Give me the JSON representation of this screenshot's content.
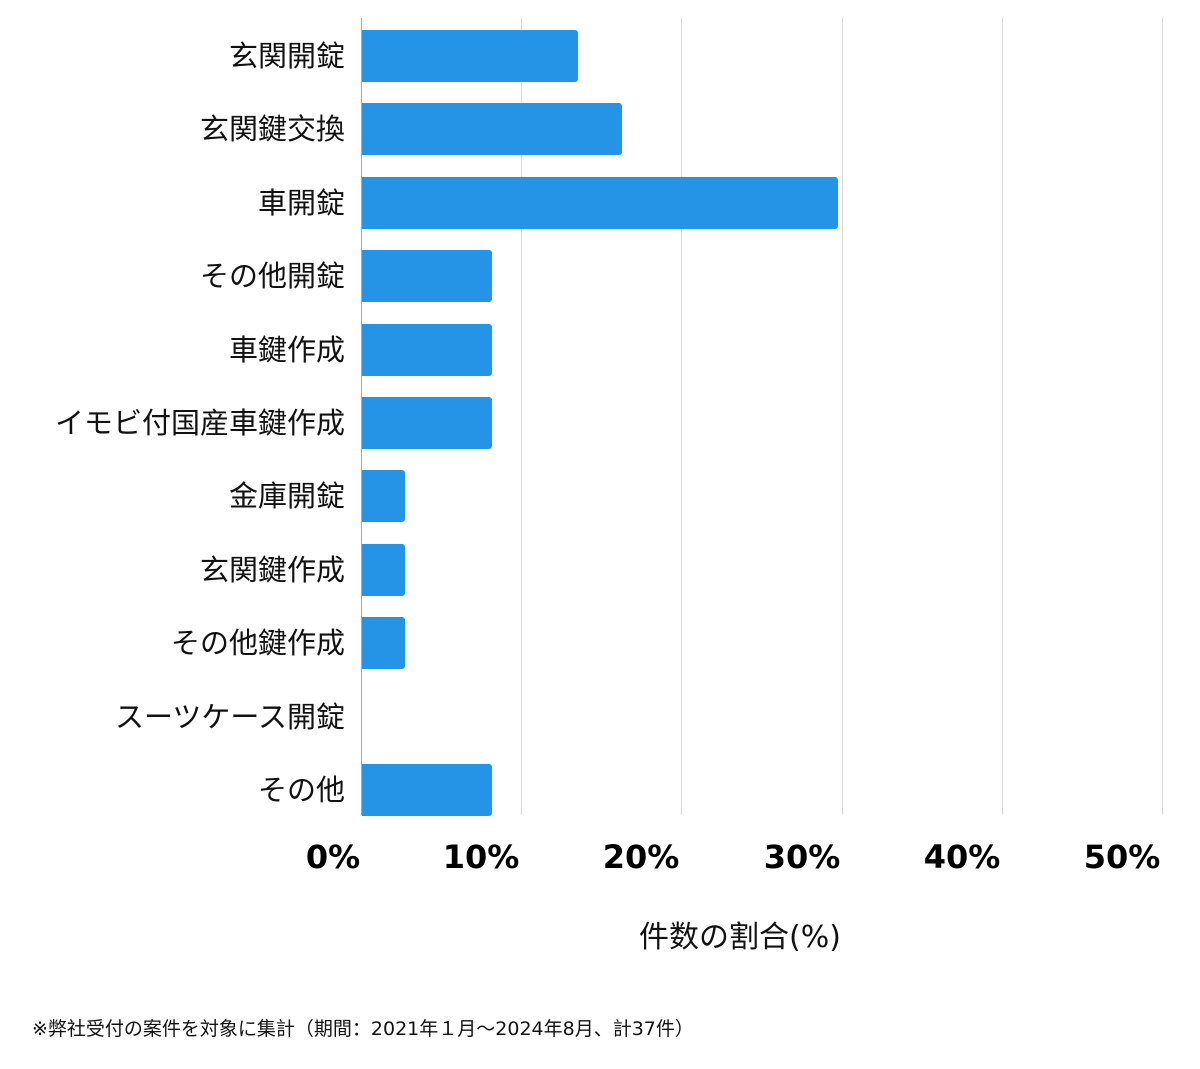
{
  "chart_data": {
    "type": "bar",
    "orientation": "horizontal",
    "title": "",
    "xlabel": "件数の割合(%)",
    "ylabel": "",
    "xlim": [
      0,
      50
    ],
    "grid": true,
    "categories": [
      "玄関開錠",
      "玄関鍵交換",
      "車開錠",
      "その他開錠",
      "車鍵作成",
      "イモビ付国産車鍵作成",
      "金庫開錠",
      "玄関鍵作成",
      "その他鍵作成",
      "スーツケース開錠",
      "その他"
    ],
    "values": [
      13.5,
      16.2,
      29.7,
      8.1,
      8.1,
      8.1,
      2.7,
      2.7,
      2.7,
      0,
      8.1
    ],
    "x_ticks": [
      "0%",
      "10%",
      "20%",
      "30%",
      "40%",
      "50%"
    ],
    "bar_color": "#2594e6",
    "note": "※弊社受付の案件を対象に集計（期間：2021年１月～2024年8月、計37件）"
  },
  "labels": {
    "c0": "玄関開錠",
    "c1": "玄関鍵交換",
    "c2": "車開錠",
    "c3": "その他開錠",
    "c4": "車鍵作成",
    "c5": "イモビ付国産車鍵作成",
    "c6": "金庫開錠",
    "c7": "玄関鍵作成",
    "c8": "その他鍵作成",
    "c9": "スーツケース開錠",
    "c10": "その他"
  },
  "ticks": {
    "t0": "0%",
    "t1": "10%",
    "t2": "20%",
    "t3": "30%",
    "t4": "40%",
    "t5": "50%"
  },
  "axis": {
    "xlabel": "件数の割合(%)"
  },
  "footer": {
    "note": "※弊社受付の案件を対象に集計（期間：2021年１月～2024年8月、計37件）"
  }
}
